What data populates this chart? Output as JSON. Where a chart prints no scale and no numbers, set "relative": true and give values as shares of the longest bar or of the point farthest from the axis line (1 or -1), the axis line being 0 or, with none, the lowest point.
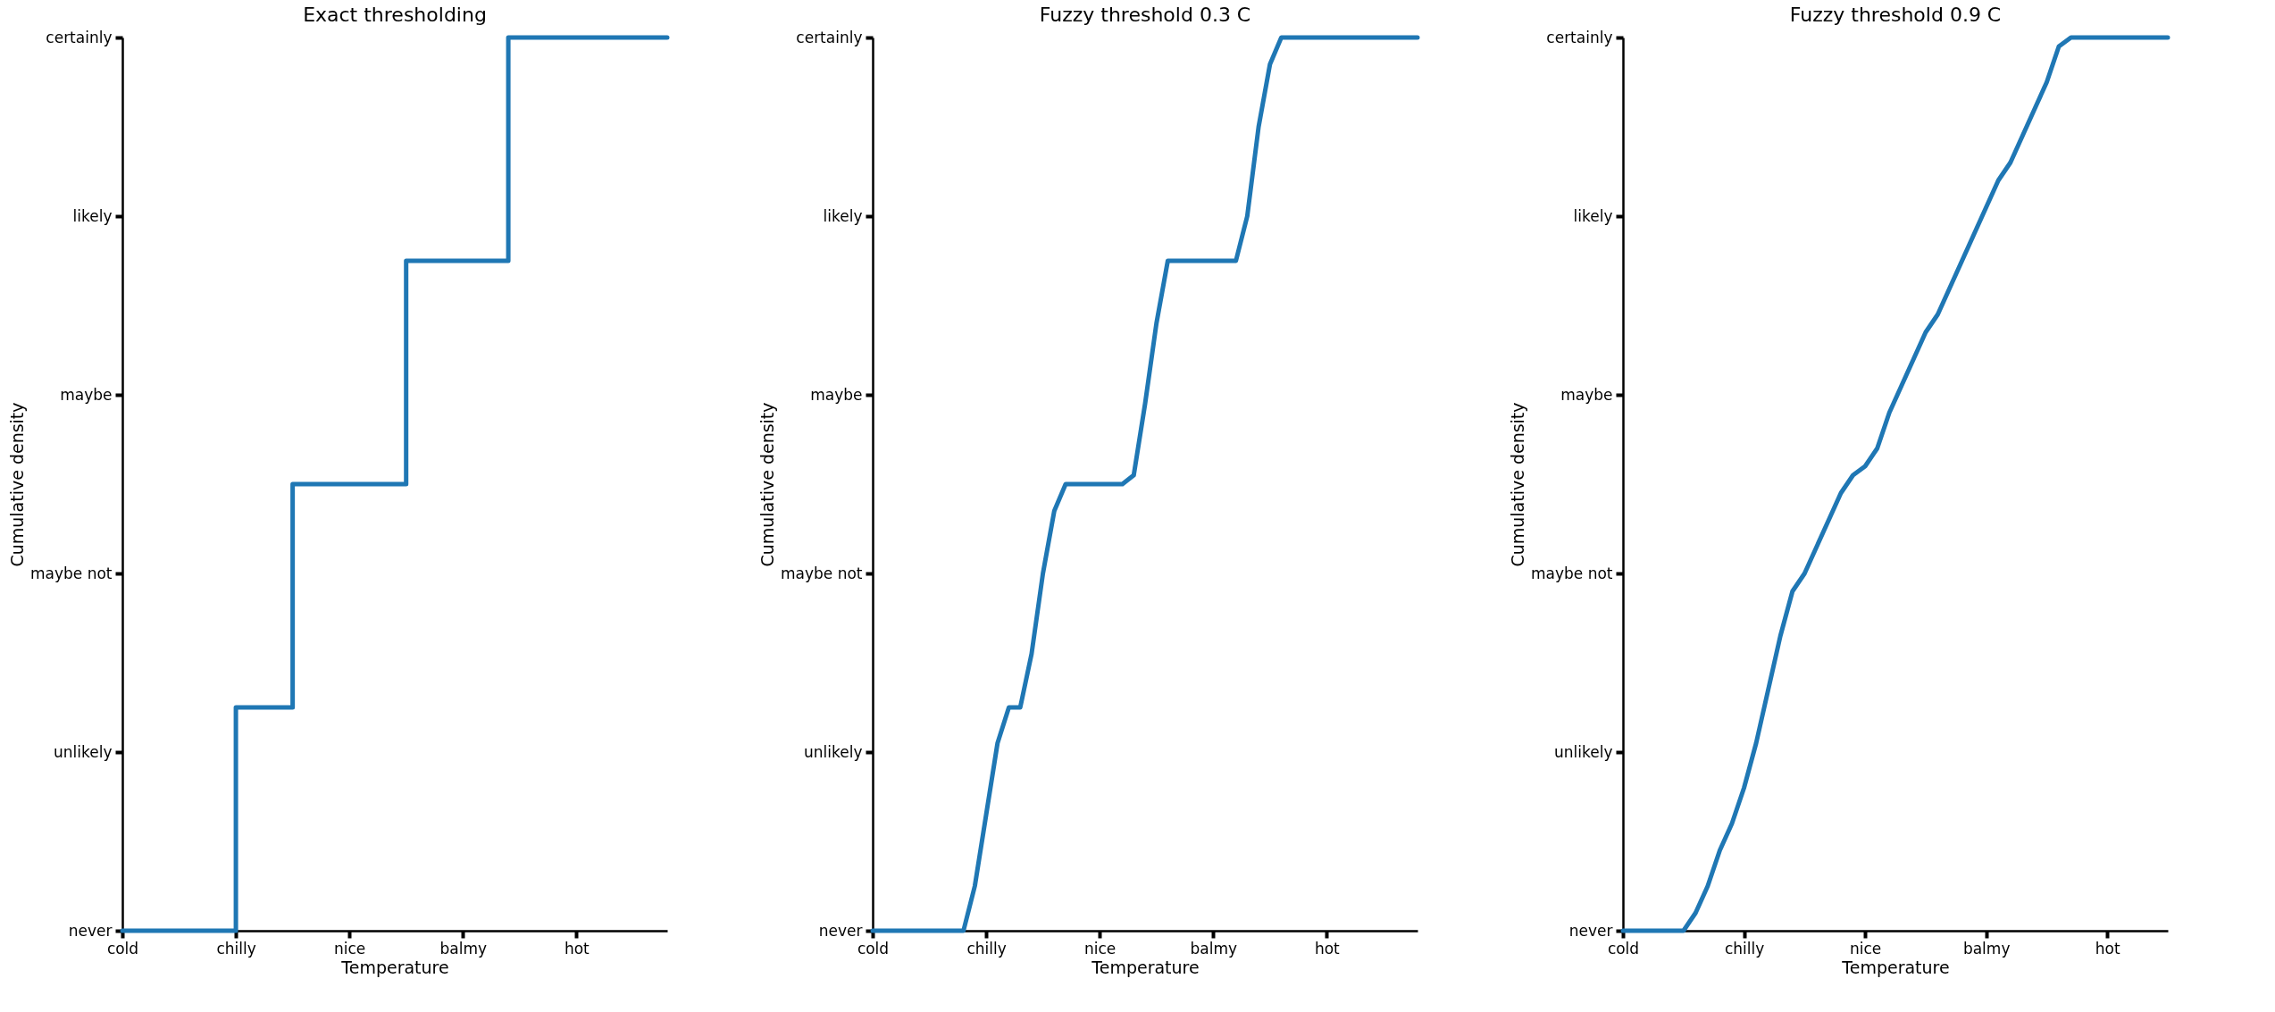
{
  "chart_data": [
    {
      "type": "step",
      "relative": true,
      "title": "Exact thresholding",
      "xlabel": "Temperature",
      "ylabel": "Cumulative density",
      "annotations": [
        "never",
        "unlikely",
        "maybe not",
        "maybe",
        "likely",
        "certainly"
      ],
      "grid": false,
      "color": "#1f77b4",
      "categories": [
        "cold",
        null,
        null,
        null,
        null,
        null,
        null,
        null,
        null,
        null,
        "chilly",
        null,
        null,
        null,
        null,
        null,
        null,
        null,
        null,
        null,
        "nice",
        null,
        null,
        null,
        null,
        null,
        null,
        null,
        null,
        null,
        "balmy",
        null,
        null,
        null,
        null,
        null,
        null,
        null,
        null,
        null,
        "hot",
        null,
        null,
        null,
        null,
        null,
        null,
        null,
        null
      ],
      "values": [
        0,
        0,
        0,
        0,
        0,
        0,
        0,
        0,
        0,
        0,
        0.25,
        0.25,
        0.25,
        0.25,
        0.25,
        0.5,
        0.5,
        0.5,
        0.5,
        0.5,
        0.5,
        0.5,
        0.5,
        0.5,
        0.5,
        0.75,
        0.75,
        0.75,
        0.75,
        0.75,
        0.75,
        0.75,
        0.75,
        0.75,
        1,
        1,
        1,
        1,
        1,
        1,
        1,
        1,
        1,
        1,
        1,
        1,
        1,
        1,
        1
      ]
    },
    {
      "type": "line",
      "relative": true,
      "title": "Fuzzy threshold 0.3 C",
      "xlabel": "Temperature",
      "ylabel": "Cumulative density",
      "annotations": [
        "never",
        "unlikely",
        "maybe not",
        "maybe",
        "likely",
        "certainly"
      ],
      "grid": false,
      "color": "#1f77b4",
      "categories": [
        "cold",
        null,
        null,
        null,
        null,
        null,
        null,
        null,
        null,
        null,
        "chilly",
        null,
        null,
        null,
        null,
        null,
        null,
        null,
        null,
        null,
        "nice",
        null,
        null,
        null,
        null,
        null,
        null,
        null,
        null,
        null,
        "balmy",
        null,
        null,
        null,
        null,
        null,
        null,
        null,
        null,
        null,
        "hot",
        null,
        null,
        null,
        null,
        null,
        null,
        null,
        null
      ],
      "values": [
        0,
        0,
        0,
        0,
        0,
        0,
        0,
        0,
        0,
        0.05,
        0.13,
        0.21,
        0.25,
        0.25,
        0.31,
        0.4,
        0.47,
        0.5,
        0.5,
        0.5,
        0.5,
        0.5,
        0.5,
        0.51,
        0.59,
        0.68,
        0.75,
        0.75,
        0.75,
        0.75,
        0.75,
        0.75,
        0.75,
        0.8,
        0.9,
        0.97,
        1,
        1,
        1,
        1,
        1,
        1,
        1,
        1,
        1,
        1,
        1,
        1,
        1
      ]
    },
    {
      "type": "line",
      "relative": true,
      "title": "Fuzzy threshold 0.9 C",
      "xlabel": "Temperature",
      "ylabel": "Cumulative density",
      "annotations": [
        "never",
        "unlikely",
        "maybe not",
        "maybe",
        "likely",
        "certainly"
      ],
      "grid": false,
      "color": "#1f77b4",
      "categories": [
        "cold",
        null,
        null,
        null,
        null,
        null,
        null,
        null,
        null,
        null,
        "chilly",
        null,
        null,
        null,
        null,
        null,
        null,
        null,
        null,
        null,
        "nice",
        null,
        null,
        null,
        null,
        null,
        null,
        null,
        null,
        null,
        "balmy",
        null,
        null,
        null,
        null,
        null,
        null,
        null,
        null,
        null,
        "hot",
        null,
        null,
        null,
        null,
        null
      ],
      "values": [
        0,
        0,
        0,
        0,
        0,
        0,
        0.02,
        0.05,
        0.09,
        0.12,
        0.16,
        0.21,
        0.27,
        0.33,
        0.38,
        0.4,
        0.43,
        0.46,
        0.49,
        0.51,
        0.52,
        0.54,
        0.58,
        0.61,
        0.64,
        0.67,
        0.69,
        0.72,
        0.75,
        0.78,
        0.81,
        0.84,
        0.86,
        0.89,
        0.92,
        0.95,
        0.99,
        1,
        1,
        1,
        1,
        1,
        1,
        1,
        1,
        1
      ]
    }
  ]
}
